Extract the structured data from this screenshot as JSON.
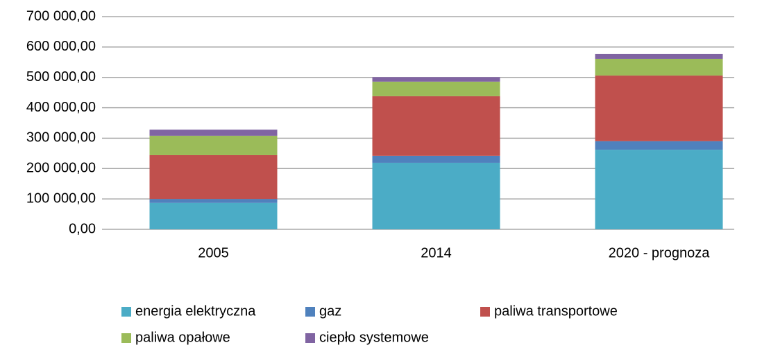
{
  "chart_data": {
    "type": "stacked_bar",
    "categories": [
      "2005",
      "2014",
      "2020 - prognoza"
    ],
    "series": [
      {
        "name": "energia elektryczna",
        "color": "#4bacc6",
        "values": [
          87000,
          219000,
          262000
        ]
      },
      {
        "name": "gaz",
        "color": "#4f81bd",
        "values": [
          13000,
          23000,
          28000
        ]
      },
      {
        "name": "paliwa transportowe",
        "color": "#c0504d",
        "values": [
          144000,
          196000,
          216000
        ]
      },
      {
        "name": "paliwa opałowe",
        "color": "#9bbb59",
        "values": [
          64000,
          48000,
          55000
        ]
      },
      {
        "name": "ciepło systemowe",
        "color": "#8064a2",
        "values": [
          20000,
          15000,
          16000
        ]
      }
    ],
    "ylim": [
      0,
      700000
    ],
    "yticks": [
      {
        "value": 0,
        "label": "0,00"
      },
      {
        "value": 100000,
        "label": "100 000,00"
      },
      {
        "value": 200000,
        "label": "200 000,00"
      },
      {
        "value": 300000,
        "label": "300 000,00"
      },
      {
        "value": 400000,
        "label": "400 000,00"
      },
      {
        "value": 500000,
        "label": "500 000,00"
      },
      {
        "value": 600000,
        "label": "600 000,00"
      },
      {
        "value": 700000,
        "label": "700 000,00"
      }
    ],
    "grid": true,
    "legend": "bottom"
  }
}
